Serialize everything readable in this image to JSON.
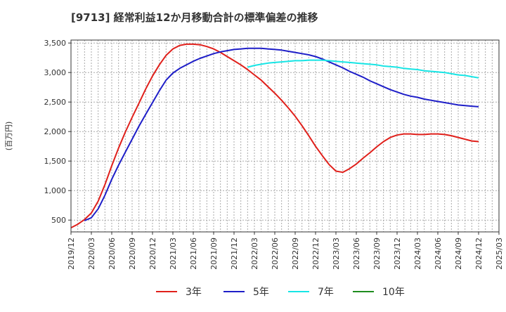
{
  "chart_data": {
    "type": "line",
    "title": "[9713]  経常利益12か月移動合計の標準偏差の推移",
    "ylabel": "(百万円)",
    "xlabel": "",
    "ylim": [
      300,
      3550
    ],
    "yticks": [
      500,
      1000,
      1500,
      2000,
      2500,
      3000,
      3500
    ],
    "ytick_labels": [
      "500",
      "1,000",
      "1,500",
      "2,000",
      "2,500",
      "3,000",
      "3,500"
    ],
    "xticks": [
      "2019/12",
      "2020/03",
      "2020/06",
      "2020/09",
      "2020/12",
      "2021/03",
      "2021/06",
      "2021/09",
      "2021/12",
      "2022/03",
      "2022/06",
      "2022/09",
      "2022/12",
      "2023/03",
      "2023/06",
      "2023/09",
      "2023/12",
      "2024/03",
      "2024/06",
      "2024/09",
      "2024/12",
      "2025/03"
    ],
    "grid": true,
    "legend_position": "bottom",
    "series": [
      {
        "name": "3年",
        "color": "#e0201b",
        "x": [
          "2019/12",
          "2020/01",
          "2020/02",
          "2020/03",
          "2020/04",
          "2020/05",
          "2020/06",
          "2020/07",
          "2020/08",
          "2020/09",
          "2020/10",
          "2020/11",
          "2020/12",
          "2021/01",
          "2021/02",
          "2021/03",
          "2021/04",
          "2021/05",
          "2021/06",
          "2021/07",
          "2021/08",
          "2021/09",
          "2021/10",
          "2021/11",
          "2021/12",
          "2022/01",
          "2022/02",
          "2022/03",
          "2022/04",
          "2022/05",
          "2022/06",
          "2022/07",
          "2022/08",
          "2022/09",
          "2022/10",
          "2022/11",
          "2022/12",
          "2023/01",
          "2023/02",
          "2023/03",
          "2023/04",
          "2023/05",
          "2023/06",
          "2023/07",
          "2023/08",
          "2023/09",
          "2023/10",
          "2023/11",
          "2023/12",
          "2024/01",
          "2024/02",
          "2024/03",
          "2024/04",
          "2024/05",
          "2024/06",
          "2024/07",
          "2024/08",
          "2024/09",
          "2024/10",
          "2024/11",
          "2024/12"
        ],
        "values": [
          370,
          430,
          510,
          620,
          820,
          1100,
          1420,
          1720,
          1990,
          2240,
          2480,
          2720,
          2940,
          3130,
          3290,
          3400,
          3460,
          3480,
          3480,
          3470,
          3440,
          3400,
          3340,
          3270,
          3200,
          3130,
          3050,
          2960,
          2870,
          2760,
          2650,
          2530,
          2400,
          2260,
          2100,
          1930,
          1750,
          1590,
          1440,
          1330,
          1310,
          1370,
          1450,
          1550,
          1640,
          1740,
          1830,
          1900,
          1940,
          1960,
          1960,
          1950,
          1950,
          1960,
          1960,
          1950,
          1930,
          1900,
          1870,
          1840,
          1830
        ]
      },
      {
        "name": "5年",
        "color": "#1e1ec8",
        "x": [
          "2020/02",
          "2020/03",
          "2020/04",
          "2020/05",
          "2020/06",
          "2020/07",
          "2020/08",
          "2020/09",
          "2020/10",
          "2020/11",
          "2020/12",
          "2021/01",
          "2021/02",
          "2021/03",
          "2021/04",
          "2021/05",
          "2021/06",
          "2021/07",
          "2021/08",
          "2021/09",
          "2021/10",
          "2021/11",
          "2021/12",
          "2022/01",
          "2022/02",
          "2022/03",
          "2022/04",
          "2022/05",
          "2022/06",
          "2022/07",
          "2022/08",
          "2022/09",
          "2022/10",
          "2022/11",
          "2022/12",
          "2023/01",
          "2023/02",
          "2023/03",
          "2023/04",
          "2023/05",
          "2023/06",
          "2023/07",
          "2023/08",
          "2023/09",
          "2023/10",
          "2023/11",
          "2023/12",
          "2024/01",
          "2024/02",
          "2024/03",
          "2024/04",
          "2024/05",
          "2024/06",
          "2024/07",
          "2024/08",
          "2024/09",
          "2024/10",
          "2024/11",
          "2024/12"
        ],
        "values": [
          490,
          540,
          690,
          920,
          1190,
          1430,
          1650,
          1870,
          2090,
          2290,
          2490,
          2690,
          2870,
          2990,
          3070,
          3130,
          3190,
          3240,
          3280,
          3320,
          3350,
          3370,
          3390,
          3400,
          3410,
          3410,
          3410,
          3400,
          3390,
          3380,
          3360,
          3340,
          3320,
          3300,
          3270,
          3230,
          3180,
          3130,
          3080,
          3020,
          2970,
          2920,
          2860,
          2810,
          2760,
          2710,
          2670,
          2630,
          2600,
          2580,
          2550,
          2530,
          2510,
          2490,
          2470,
          2450,
          2440,
          2430,
          2420
        ]
      },
      {
        "name": "7年",
        "color": "#17e5e5",
        "x": [
          "2022/02",
          "2022/03",
          "2022/04",
          "2022/05",
          "2022/06",
          "2022/07",
          "2022/08",
          "2022/09",
          "2022/10",
          "2022/11",
          "2022/12",
          "2023/01",
          "2023/02",
          "2023/03",
          "2023/04",
          "2023/05",
          "2023/06",
          "2023/07",
          "2023/08",
          "2023/09",
          "2023/10",
          "2023/11",
          "2023/12",
          "2024/01",
          "2024/02",
          "2024/03",
          "2024/04",
          "2024/05",
          "2024/06",
          "2024/07",
          "2024/08",
          "2024/09",
          "2024/10",
          "2024/11",
          "2024/12"
        ],
        "values": [
          3090,
          3120,
          3140,
          3160,
          3170,
          3180,
          3190,
          3200,
          3200,
          3210,
          3210,
          3210,
          3200,
          3190,
          3180,
          3170,
          3160,
          3150,
          3140,
          3130,
          3110,
          3100,
          3090,
          3070,
          3060,
          3050,
          3030,
          3020,
          3010,
          3000,
          2980,
          2960,
          2950,
          2930,
          2910
        ]
      },
      {
        "name": "10年",
        "color": "#1e8c1e",
        "x": [],
        "values": []
      }
    ]
  }
}
